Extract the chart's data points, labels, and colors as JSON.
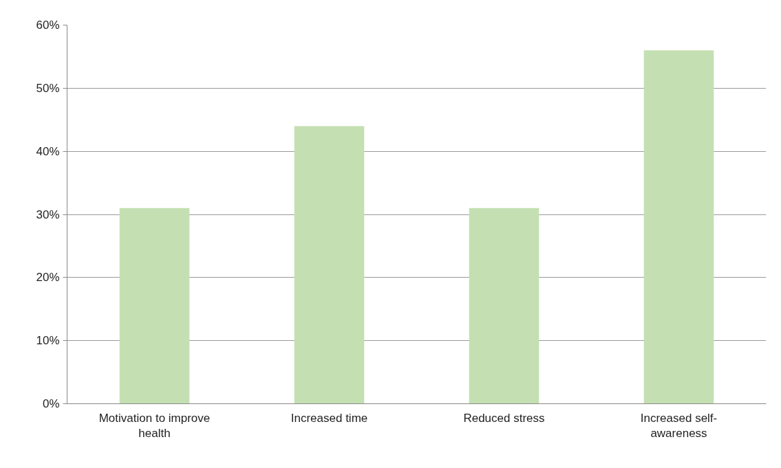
{
  "chart_data": {
    "type": "bar",
    "categories": [
      "Motivation to improve health",
      "Increased time",
      "Reduced stress",
      "Increased self-awareness"
    ],
    "values": [
      31,
      44,
      31,
      56
    ],
    "color": "#c4e0b2",
    "ylim": [
      0,
      60
    ],
    "yticks": [
      {
        "value": 0,
        "label": "0%"
      },
      {
        "value": 10,
        "label": "10%"
      },
      {
        "value": 20,
        "label": "20%"
      },
      {
        "value": 30,
        "label": "30%"
      },
      {
        "value": 40,
        "label": "40%"
      },
      {
        "value": 50,
        "label": "50%"
      },
      {
        "value": 60,
        "label": "60%"
      }
    ],
    "grid": "y"
  }
}
